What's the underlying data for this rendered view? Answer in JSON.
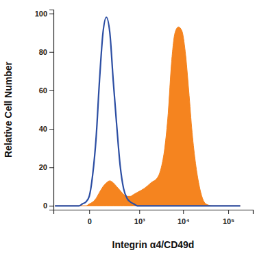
{
  "chart_data": {
    "type": "line",
    "x_label": "Integrin α4/CD49d",
    "y_label": "Relative Cell Number",
    "log": "x",
    "x": [
      -402,
      -58,
      -36,
      -16,
      0,
      16,
      36,
      58,
      86,
      118,
      157,
      203,
      258,
      324,
      402,
      495,
      605,
      737,
      893,
      1301,
      1881,
      2702,
      3233,
      3866,
      4619,
      5517,
      6583,
      7854,
      9367,
      11169,
      13319,
      15870,
      18910,
      22530,
      26840,
      31980,
      45410,
      183800
    ],
    "series": [
      {
        "type": "area",
        "color": "#f5841f",
        "values": [
          0,
          0,
          0,
          0,
          1,
          2,
          4,
          7,
          10,
          12,
          13,
          12,
          10,
          8,
          6,
          5,
          5,
          6,
          7,
          9,
          12,
          15,
          20,
          30,
          48,
          75,
          90,
          93,
          91,
          80,
          60,
          38,
          22,
          11,
          4,
          1,
          0,
          0
        ]
      },
      {
        "type": "line",
        "color": "#2c4ea3",
        "values": [
          0,
          0,
          1,
          2,
          5,
          16,
          36,
          65,
          90,
          98,
          90,
          65,
          42,
          21,
          9,
          4,
          2,
          1,
          0,
          0,
          0,
          0,
          0,
          0,
          0,
          0,
          0,
          0,
          0,
          0,
          0,
          0,
          0,
          0,
          0,
          0,
          0,
          0
        ]
      }
    ],
    "xlim": [
      -440,
      350000
    ],
    "xticks": [
      0,
      {
        "value": 1000,
        "label": "10³"
      },
      {
        "value": 10000,
        "label": "10⁴"
      },
      {
        "value": 100000,
        "label": "10⁵"
      }
    ],
    "ylim": [
      -2,
      102
    ],
    "yticks": [
      0,
      20,
      40,
      60,
      80,
      100
    ],
    "grid": false
  }
}
